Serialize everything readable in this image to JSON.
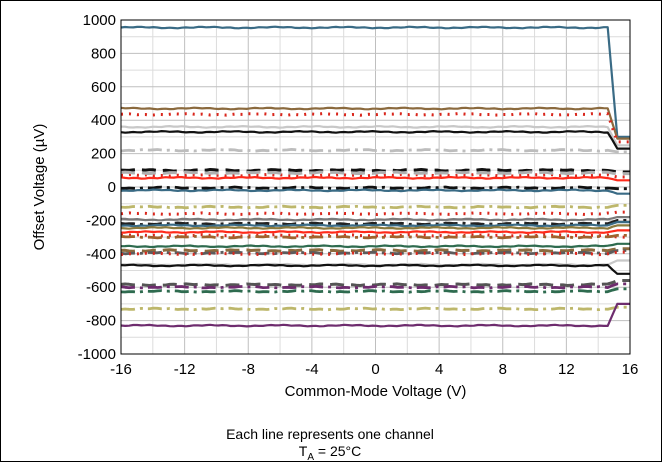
{
  "chart_data": {
    "type": "line",
    "xlabel": "Common-Mode Voltage (V)",
    "ylabel": "Offset Voltage (µV)",
    "xlim": [
      -16,
      16
    ],
    "ylim": [
      -1000,
      1000
    ],
    "x_ticks": [
      "-16",
      "-12",
      "-8",
      "-4",
      "0",
      "4",
      "8",
      "12",
      "16"
    ],
    "y_ticks": [
      "1000",
      "800",
      "600",
      "400",
      "200",
      "0",
      "-200",
      "-400",
      "-600",
      "-800",
      "-1000"
    ],
    "grid": true,
    "transition_x": [
      14.6,
      15.2
    ],
    "series": [
      {
        "color": "#3a6b85",
        "dash": "solid",
        "offset": 955,
        "tail": 300
      },
      {
        "color": "#8b6a3e",
        "dash": "solid",
        "offset": 470,
        "tail": 290
      },
      {
        "color": "#d9261c",
        "dash": "dot",
        "offset": 435,
        "tail": 270
      },
      {
        "color": "#c8c8c8",
        "dash": "solid",
        "offset": 360,
        "tail": 250
      },
      {
        "color": "#111111",
        "dash": "solid",
        "offset": 330,
        "tail": 230
      },
      {
        "color": "#bdbdbd",
        "dash": "dashdot",
        "offset": 220,
        "tail": 210
      },
      {
        "color": "#111111",
        "dash": "dash",
        "offset": 100,
        "tail": 90
      },
      {
        "color": "#d9261c",
        "dash": "dot",
        "offset": 70,
        "tail": 60
      },
      {
        "color": "#b0b0b0",
        "dash": "dash",
        "offset": 85,
        "tail": 80
      },
      {
        "color": "#ff2a1a",
        "dash": "solid",
        "offset": 55,
        "tail": 40
      },
      {
        "color": "#111111",
        "dash": "dashdot",
        "offset": -5,
        "tail": -10
      },
      {
        "color": "#3a6b85",
        "dash": "solid",
        "offset": -20,
        "tail": -40
      },
      {
        "color": "#bdb76b",
        "dash": "dashdot",
        "offset": -120,
        "tail": -110
      },
      {
        "color": "#d9261c",
        "dash": "dot",
        "offset": -160,
        "tail": -150
      },
      {
        "color": "#7a7a7a",
        "dash": "solid",
        "offset": -195,
        "tail": -180
      },
      {
        "color": "#222222",
        "dash": "dashdot",
        "offset": -220,
        "tail": -200
      },
      {
        "color": "#3a6b85",
        "dash": "solid",
        "offset": -230,
        "tail": -210
      },
      {
        "color": "#8b7a3e",
        "dash": "solid",
        "offset": -245,
        "tail": -230
      },
      {
        "color": "#ff2a1a",
        "dash": "solid",
        "offset": -270,
        "tail": -260
      },
      {
        "color": "#d9261c",
        "dash": "dot",
        "offset": -290,
        "tail": -300
      },
      {
        "color": "#a0622d",
        "dash": "dashdot",
        "offset": -300,
        "tail": -290
      },
      {
        "color": "#2e6b4f",
        "dash": "solid",
        "offset": -355,
        "tail": -340
      },
      {
        "color": "#8b6a3e",
        "dash": "dash",
        "offset": -380,
        "tail": -370
      },
      {
        "color": "#5c5c5c",
        "dash": "dashdot",
        "offset": -395,
        "tail": -380
      },
      {
        "color": "#d9261c",
        "dash": "dot",
        "offset": -400,
        "tail": -390
      },
      {
        "color": "#c8c8c8",
        "dash": "solid",
        "offset": -465,
        "tail": -440
      },
      {
        "color": "#111111",
        "dash": "solid",
        "offset": -470,
        "tail": -520
      },
      {
        "color": "#555555",
        "dash": "dash",
        "offset": -585,
        "tail": -560
      },
      {
        "color": "#6e2c6e",
        "dash": "dashdot",
        "offset": -600,
        "tail": -580
      },
      {
        "color": "#2e6b4f",
        "dash": "dashdot",
        "offset": -625,
        "tail": -610
      },
      {
        "color": "#bdb76b",
        "dash": "dashdot",
        "offset": -730,
        "tail": -720
      },
      {
        "color": "#6e2c6e",
        "dash": "solid",
        "offset": -830,
        "tail": -700
      }
    ]
  },
  "caption": {
    "line1": "Each line represents one channel",
    "t": "T",
    "t_sub": "A",
    "t_rest": " = 25°C"
  }
}
